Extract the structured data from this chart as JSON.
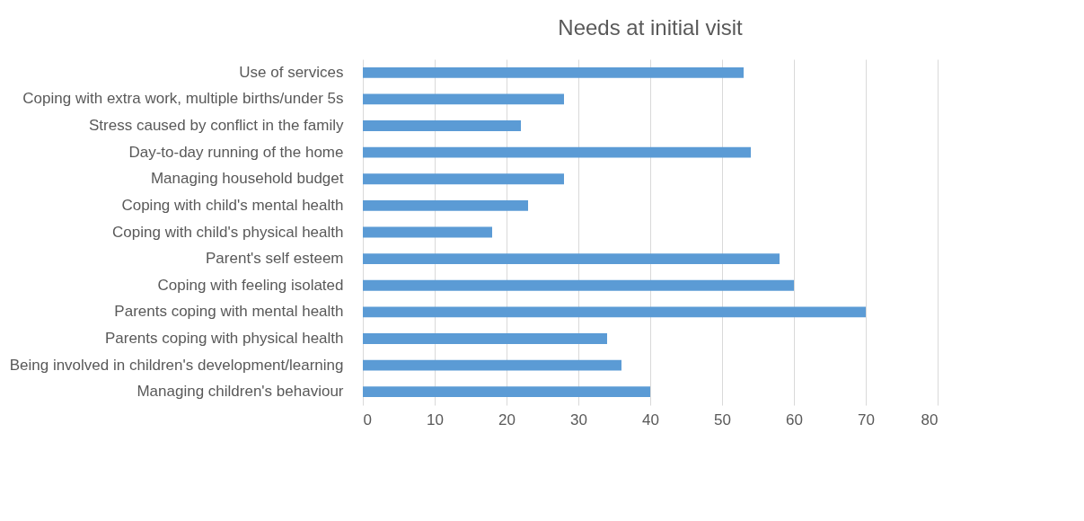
{
  "chart_data": {
    "type": "bar",
    "orientation": "horizontal",
    "title": "Needs at initial visit",
    "categories": [
      "Use of services",
      "Coping with extra work, multiple births/under 5s",
      "Stress caused by conflict in the family",
      "Day-to-day running of the home",
      "Managing household budget",
      "Coping with child's mental health",
      "Coping with child's physical health",
      "Parent's self esteem",
      "Coping with feeling isolated",
      "Parents coping with mental health",
      "Parents coping with physical health",
      "Being involved in children's development/learning",
      "Managing children's behaviour"
    ],
    "values": [
      53,
      28,
      22,
      54,
      28,
      23,
      18,
      58,
      60,
      70,
      34,
      36,
      40
    ],
    "color": "#5b9bd5",
    "xlim": [
      0,
      80
    ],
    "xticks": [
      0,
      10,
      20,
      30,
      40,
      50,
      60,
      70,
      80
    ],
    "grid": "x"
  }
}
